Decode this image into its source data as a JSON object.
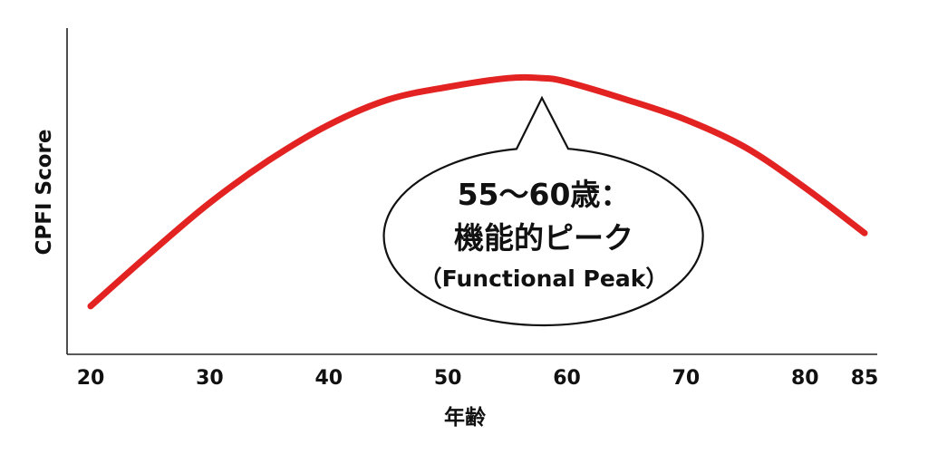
{
  "chart_data": {
    "type": "line",
    "xlabel": "年齢",
    "ylabel": "CPFI Score",
    "xlim": [
      20,
      85
    ],
    "ylim": [
      0,
      100
    ],
    "x_ticks": [
      20,
      30,
      40,
      50,
      60,
      70,
      80,
      85
    ],
    "y_ticks": [],
    "grid": false,
    "series": [
      {
        "color": "#e32222",
        "x": [
          20,
          25,
          30,
          35,
          40,
          45,
          50,
          55,
          58,
          60,
          65,
          70,
          75,
          80,
          85
        ],
        "y": [
          13,
          34,
          54,
          71,
          85,
          95,
          100,
          103.5,
          103.5,
          102,
          95,
          87,
          76,
          60,
          42
        ]
      }
    ],
    "annotation": {
      "line1": "55〜60歳：",
      "line2": "機能的ピーク",
      "line3": "（Functional Peak）",
      "x_range": [
        55,
        60
      ]
    }
  }
}
